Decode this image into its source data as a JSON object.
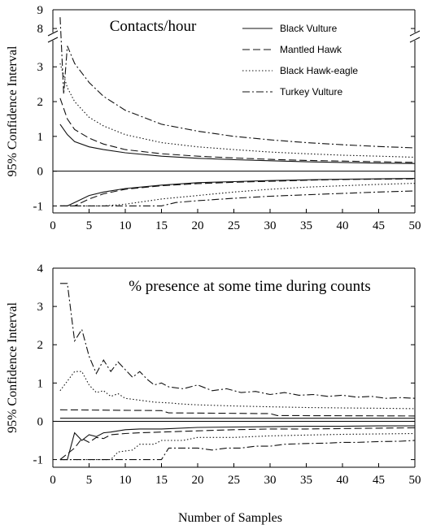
{
  "figure": {
    "xlabel": "Number of Samples"
  },
  "chart_data": [
    {
      "type": "line",
      "title": "Contacts/hour",
      "ylabel": "95% Confidence Interval",
      "xlim": [
        0,
        50
      ],
      "ylim": [
        -1.2,
        9
      ],
      "axis_break": [
        3.8,
        7.7
      ],
      "x_ticks": [
        "0",
        "5",
        "10",
        "15",
        "20",
        "25",
        "30",
        "35",
        "40",
        "45",
        "50"
      ],
      "y_ticks": [
        "-1",
        "0",
        "1",
        "2",
        "3",
        "8",
        "9"
      ],
      "legend_position": "top-right",
      "zero_line": true,
      "series": [
        {
          "name": "Black Vulture",
          "style": "solid",
          "upper": [
            [
              1,
              1.35
            ],
            [
              2,
              1.05
            ],
            [
              3,
              0.85
            ],
            [
              5,
              0.7
            ],
            [
              7,
              0.62
            ],
            [
              10,
              0.53
            ],
            [
              15,
              0.43
            ],
            [
              20,
              0.37
            ],
            [
              25,
              0.33
            ],
            [
              30,
              0.3
            ],
            [
              35,
              0.27
            ],
            [
              40,
              0.25
            ],
            [
              45,
              0.23
            ],
            [
              50,
              0.22
            ]
          ],
          "lower": [
            [
              1,
              -1
            ],
            [
              2,
              -1
            ],
            [
              3,
              -0.9
            ],
            [
              5,
              -0.7
            ],
            [
              7,
              -0.6
            ],
            [
              10,
              -0.5
            ],
            [
              15,
              -0.4
            ],
            [
              20,
              -0.33
            ],
            [
              25,
              -0.3
            ],
            [
              30,
              -0.27
            ],
            [
              35,
              -0.25
            ],
            [
              40,
              -0.23
            ],
            [
              45,
              -0.22
            ],
            [
              50,
              -0.21
            ]
          ]
        },
        {
          "name": "Mantled Hawk",
          "style": "dashed",
          "upper": [
            [
              1,
              2.1
            ],
            [
              2,
              1.5
            ],
            [
              3,
              1.2
            ],
            [
              5,
              0.95
            ],
            [
              7,
              0.78
            ],
            [
              10,
              0.62
            ],
            [
              15,
              0.5
            ],
            [
              20,
              0.43
            ],
            [
              25,
              0.38
            ],
            [
              30,
              0.34
            ],
            [
              35,
              0.31
            ],
            [
              40,
              0.29
            ],
            [
              45,
              0.27
            ],
            [
              50,
              0.25
            ]
          ],
          "lower": [
            [
              1,
              -1
            ],
            [
              2,
              -1
            ],
            [
              3,
              -1
            ],
            [
              5,
              -0.8
            ],
            [
              7,
              -0.65
            ],
            [
              10,
              -0.52
            ],
            [
              15,
              -0.42
            ],
            [
              20,
              -0.36
            ],
            [
              25,
              -0.32
            ],
            [
              30,
              -0.29
            ],
            [
              35,
              -0.26
            ],
            [
              40,
              -0.24
            ],
            [
              45,
              -0.23
            ],
            [
              50,
              -0.22
            ]
          ]
        },
        {
          "name": "Black Hawk-eagle",
          "style": "dotted",
          "upper": [
            [
              1,
              3.1
            ],
            [
              2,
              2.4
            ],
            [
              3,
              2.0
            ],
            [
              5,
              1.55
            ],
            [
              7,
              1.3
            ],
            [
              10,
              1.05
            ],
            [
              15,
              0.82
            ],
            [
              20,
              0.7
            ],
            [
              25,
              0.62
            ],
            [
              30,
              0.55
            ],
            [
              35,
              0.5
            ],
            [
              40,
              0.46
            ],
            [
              45,
              0.43
            ],
            [
              50,
              0.4
            ]
          ],
          "lower": [
            [
              1,
              -1
            ],
            [
              5,
              -1
            ],
            [
              7,
              -1
            ],
            [
              10,
              -0.95
            ],
            [
              15,
              -0.8
            ],
            [
              20,
              -0.7
            ],
            [
              25,
              -0.6
            ],
            [
              30,
              -0.52
            ],
            [
              35,
              -0.46
            ],
            [
              40,
              -0.42
            ],
            [
              45,
              -0.38
            ],
            [
              50,
              -0.35
            ]
          ]
        },
        {
          "name": "Turkey Vulture",
          "style": "dashdot",
          "upper": [
            [
              1,
              8.6
            ],
            [
              1.5,
              4.5
            ],
            [
              2,
              3.6
            ],
            [
              3,
              3.1
            ],
            [
              5,
              2.55
            ],
            [
              7,
              2.15
            ],
            [
              10,
              1.75
            ],
            [
              15,
              1.35
            ],
            [
              20,
              1.15
            ],
            [
              25,
              1.0
            ],
            [
              30,
              0.9
            ],
            [
              35,
              0.82
            ],
            [
              40,
              0.76
            ],
            [
              45,
              0.71
            ],
            [
              50,
              0.67
            ]
          ],
          "lower": [
            [
              1,
              -1
            ],
            [
              15,
              -1
            ],
            [
              17,
              -0.9
            ],
            [
              20,
              -0.85
            ],
            [
              25,
              -0.78
            ],
            [
              30,
              -0.72
            ],
            [
              35,
              -0.68
            ],
            [
              40,
              -0.64
            ],
            [
              45,
              -0.6
            ],
            [
              50,
              -0.57
            ]
          ]
        }
      ]
    },
    {
      "type": "line",
      "title": "% presence at some time during counts",
      "ylabel": "95% Confidence Interval",
      "xlim": [
        0,
        50
      ],
      "ylim": [
        -1.2,
        4
      ],
      "x_ticks": [
        "0",
        "5",
        "10",
        "15",
        "20",
        "25",
        "30",
        "35",
        "40",
        "45",
        "50"
      ],
      "y_ticks": [
        "-1",
        "0",
        "1",
        "2",
        "3",
        "4"
      ],
      "zero_line": true,
      "series": [
        {
          "name": "Black Vulture",
          "style": "solid",
          "upper": [
            [
              1,
              0.08
            ],
            [
              50,
              0.08
            ]
          ],
          "lower": [
            [
              1,
              -1
            ],
            [
              2,
              -1
            ],
            [
              3,
              -0.3
            ],
            [
              4,
              -0.5
            ],
            [
              5,
              -0.35
            ],
            [
              6,
              -0.4
            ],
            [
              7,
              -0.3
            ],
            [
              8,
              -0.28
            ],
            [
              10,
              -0.22
            ],
            [
              12,
              -0.2
            ],
            [
              15,
              -0.2
            ],
            [
              20,
              -0.16
            ],
            [
              25,
              -0.15
            ],
            [
              30,
              -0.14
            ],
            [
              35,
              -0.13
            ],
            [
              40,
              -0.13
            ],
            [
              45,
              -0.12
            ],
            [
              50,
              -0.12
            ]
          ]
        },
        {
          "name": "Mantled Hawk",
          "style": "dashed",
          "upper": [
            [
              1,
              0.3
            ],
            [
              15,
              0.28
            ],
            [
              16,
              0.22
            ],
            [
              30,
              0.2
            ],
            [
              31,
              0.15
            ],
            [
              50,
              0.14
            ]
          ],
          "lower": [
            [
              1,
              -1
            ],
            [
              3,
              -0.7
            ],
            [
              4,
              -0.45
            ],
            [
              5,
              -0.55
            ],
            [
              6,
              -0.42
            ],
            [
              7,
              -0.45
            ],
            [
              8,
              -0.35
            ],
            [
              10,
              -0.32
            ],
            [
              12,
              -0.3
            ],
            [
              15,
              -0.28
            ],
            [
              20,
              -0.25
            ],
            [
              25,
              -0.22
            ],
            [
              30,
              -0.2
            ],
            [
              35,
              -0.2
            ],
            [
              40,
              -0.19
            ],
            [
              45,
              -0.18
            ],
            [
              50,
              -0.17
            ]
          ]
        },
        {
          "name": "Black Hawk-eagle",
          "style": "dotted",
          "upper": [
            [
              1,
              0.8
            ],
            [
              3,
              1.3
            ],
            [
              4,
              1.3
            ],
            [
              5,
              0.95
            ],
            [
              6,
              0.75
            ],
            [
              7,
              0.8
            ],
            [
              8,
              0.65
            ],
            [
              9,
              0.72
            ],
            [
              10,
              0.6
            ],
            [
              12,
              0.55
            ],
            [
              14,
              0.5
            ],
            [
              16,
              0.48
            ],
            [
              18,
              0.45
            ],
            [
              20,
              0.43
            ],
            [
              25,
              0.4
            ],
            [
              30,
              0.38
            ],
            [
              35,
              0.36
            ],
            [
              40,
              0.35
            ],
            [
              45,
              0.34
            ],
            [
              50,
              0.33
            ]
          ],
          "lower": [
            [
              1,
              -1
            ],
            [
              8,
              -1
            ],
            [
              9,
              -0.8
            ],
            [
              11,
              -0.75
            ],
            [
              12,
              -0.6
            ],
            [
              14,
              -0.6
            ],
            [
              15,
              -0.5
            ],
            [
              18,
              -0.5
            ],
            [
              20,
              -0.42
            ],
            [
              25,
              -0.42
            ],
            [
              30,
              -0.38
            ],
            [
              35,
              -0.36
            ],
            [
              40,
              -0.34
            ],
            [
              45,
              -0.33
            ],
            [
              50,
              -0.32
            ]
          ]
        },
        {
          "name": "Turkey Vulture",
          "style": "dashdot",
          "upper": [
            [
              1,
              3.6
            ],
            [
              2,
              3.6
            ],
            [
              3,
              2.1
            ],
            [
              4,
              2.4
            ],
            [
              5,
              1.7
            ],
            [
              6,
              1.25
            ],
            [
              7,
              1.6
            ],
            [
              8,
              1.3
            ],
            [
              9,
              1.55
            ],
            [
              10,
              1.35
            ],
            [
              11,
              1.15
            ],
            [
              12,
              1.3
            ],
            [
              13,
              1.1
            ],
            [
              14,
              0.95
            ],
            [
              15,
              1.0
            ],
            [
              16,
              0.9
            ],
            [
              18,
              0.85
            ],
            [
              20,
              0.95
            ],
            [
              22,
              0.8
            ],
            [
              24,
              0.85
            ],
            [
              26,
              0.75
            ],
            [
              28,
              0.78
            ],
            [
              30,
              0.7
            ],
            [
              32,
              0.75
            ],
            [
              34,
              0.68
            ],
            [
              36,
              0.7
            ],
            [
              38,
              0.65
            ],
            [
              40,
              0.68
            ],
            [
              42,
              0.63
            ],
            [
              44,
              0.65
            ],
            [
              46,
              0.6
            ],
            [
              48,
              0.62
            ],
            [
              50,
              0.6
            ]
          ],
          "lower": [
            [
              1,
              -1
            ],
            [
              15,
              -1
            ],
            [
              16,
              -0.7
            ],
            [
              20,
              -0.7
            ],
            [
              22,
              -0.75
            ],
            [
              24,
              -0.7
            ],
            [
              26,
              -0.7
            ],
            [
              28,
              -0.65
            ],
            [
              30,
              -0.65
            ],
            [
              32,
              -0.6
            ],
            [
              35,
              -0.58
            ],
            [
              38,
              -0.57
            ],
            [
              40,
              -0.55
            ],
            [
              42,
              -0.55
            ],
            [
              45,
              -0.53
            ],
            [
              48,
              -0.52
            ],
            [
              50,
              -0.5
            ]
          ]
        }
      ]
    }
  ]
}
